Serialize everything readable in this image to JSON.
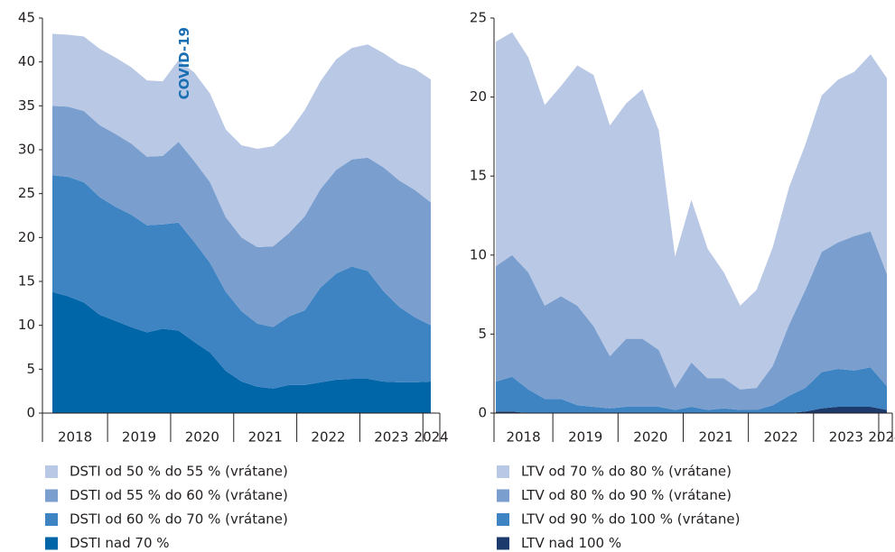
{
  "chart_data": [
    {
      "type": "stacked-area",
      "annotation": "COVID-19",
      "categories": [
        "2018",
        null,
        null,
        null,
        "2019",
        null,
        null,
        null,
        "2020",
        null,
        null,
        null,
        "2021",
        null,
        null,
        null,
        "2022",
        null,
        null,
        null,
        "2023",
        null,
        null,
        null,
        "2024"
      ],
      "series": [
        {
          "name": "DSTI od 50 % do 55 % (vrátane)",
          "color": "#b9c8e5",
          "values": [
            8.2,
            8.2,
            8.5,
            8.7,
            8.7,
            8.7,
            8.7,
            8.5,
            9.3,
            10.1,
            10.1,
            10.0,
            10.5,
            11.2,
            11.4,
            11.5,
            12.1,
            12.3,
            12.6,
            12.7,
            12.9,
            13.0,
            13.3,
            13.8,
            14.0
          ]
        },
        {
          "name": "DSTI od 55 % do 60 % (vrátane)",
          "color": "#7a9fcf",
          "values": [
            7.9,
            8.0,
            8.1,
            8.2,
            8.3,
            8.1,
            7.8,
            7.8,
            9.2,
            9.2,
            9.2,
            8.5,
            8.4,
            8.7,
            9.2,
            9.5,
            10.7,
            11.2,
            11.8,
            12.2,
            12.9,
            14.1,
            14.4,
            14.5,
            14.0
          ]
        },
        {
          "name": "DSTI od 60 % do 70 % (vrátane)",
          "color": "#3f84c2",
          "values": [
            13.3,
            13.6,
            13.7,
            13.4,
            13.0,
            12.8,
            12.2,
            11.9,
            12.3,
            11.4,
            10.2,
            9.0,
            8.0,
            7.2,
            7.0,
            7.8,
            8.5,
            10.8,
            12.1,
            12.8,
            12.3,
            10.3,
            8.6,
            7.4,
            6.4
          ]
        },
        {
          "name": "DSTI nad 70 %",
          "color": "#0066a8",
          "values": [
            13.8,
            13.3,
            12.6,
            11.2,
            10.5,
            9.8,
            9.2,
            9.6,
            9.4,
            8.1,
            6.9,
            4.8,
            3.6,
            3.0,
            2.8,
            3.2,
            3.2,
            3.5,
            3.8,
            3.9,
            3.9,
            3.6,
            3.5,
            3.5,
            3.6
          ]
        }
      ],
      "ylim": [
        0,
        45
      ],
      "yticks": [
        0,
        5,
        10,
        15,
        20,
        25,
        30,
        35,
        40,
        45
      ]
    },
    {
      "type": "stacked-area",
      "categories": [
        "2018",
        null,
        null,
        null,
        "2019",
        null,
        null,
        null,
        "2020",
        null,
        null,
        null,
        "2021",
        null,
        null,
        null,
        "2022",
        null,
        null,
        null,
        "2023",
        null,
        null,
        null,
        "2024"
      ],
      "series": [
        {
          "name": "LTV od 70 % do 80 % (vrátane)",
          "color": "#b9c8e5",
          "values": [
            14.2,
            14.1,
            13.6,
            12.7,
            13.3,
            15.2,
            15.9,
            14.6,
            14.9,
            15.8,
            13.9,
            8.3,
            10.3,
            8.2,
            6.7,
            5.3,
            6.2,
            7.5,
            8.7,
            9.2,
            9.9,
            10.3,
            10.4,
            11.2,
            12.4
          ]
        },
        {
          "name": "LTV od 80 % do 90 % (vrátane)",
          "color": "#7a9fcf",
          "values": [
            7.3,
            7.7,
            7.4,
            5.9,
            6.5,
            6.3,
            5.1,
            3.3,
            4.3,
            4.3,
            3.6,
            1.4,
            2.8,
            2.0,
            1.9,
            1.3,
            1.4,
            2.5,
            4.5,
            6.2,
            7.6,
            8.0,
            8.5,
            8.6,
            7.1
          ]
        },
        {
          "name": "LTV od 90 % do 100 % (vrátane)",
          "color": "#3f84c2",
          "values": [
            1.9,
            2.2,
            1.5,
            0.9,
            0.9,
            0.5,
            0.4,
            0.3,
            0.4,
            0.4,
            0.4,
            0.2,
            0.4,
            0.2,
            0.3,
            0.2,
            0.2,
            0.5,
            1.1,
            1.5,
            2.3,
            2.4,
            2.3,
            2.5,
            1.5
          ]
        },
        {
          "name": "LTV nad 100 %",
          "color": "#1c3a6b",
          "values": [
            0.1,
            0.1,
            0,
            0,
            0,
            0,
            0,
            0,
            0,
            0,
            0,
            0,
            0,
            0,
            0,
            0,
            0,
            0,
            0,
            0.1,
            0.3,
            0.4,
            0.4,
            0.4,
            0.2
          ]
        }
      ],
      "ylim": [
        0,
        25
      ],
      "yticks": [
        0,
        5,
        10,
        15,
        20,
        25
      ]
    }
  ]
}
